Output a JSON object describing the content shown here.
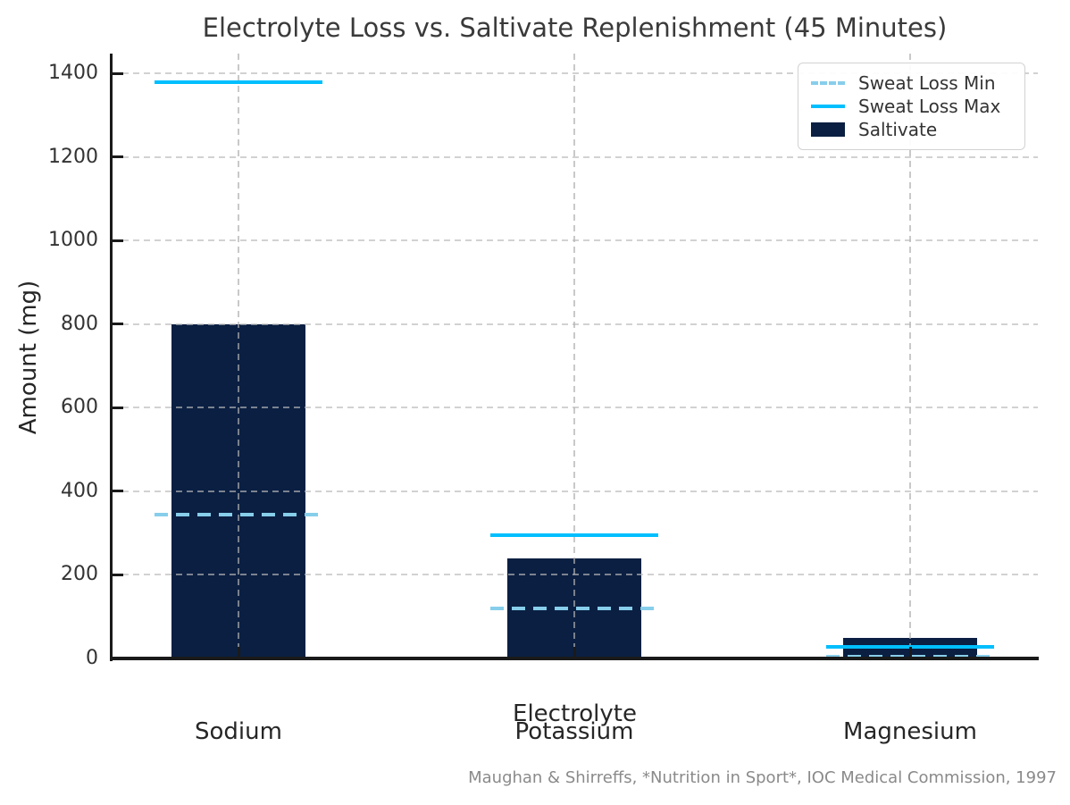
{
  "chart_data": {
    "type": "bar",
    "title": "Electrolyte Loss vs. Saltivate Replenishment (45 Minutes)",
    "xlabel": "Electrolyte",
    "ylabel": "Amount (mg)",
    "categories": [
      "Sodium",
      "Potassium",
      "Magnesium"
    ],
    "series": [
      {
        "name": "Sweat Loss Min",
        "style": "dashed-line",
        "color": "#87CEEB",
        "values": [
          345,
          120,
          5
        ]
      },
      {
        "name": "Sweat Loss Max",
        "style": "solid-line",
        "color": "#00BFFF",
        "values": [
          1380,
          295,
          27
        ]
      },
      {
        "name": "Saltivate",
        "style": "bar",
        "color": "#0a1f42",
        "values": [
          800,
          240,
          50
        ]
      }
    ],
    "ylim": [
      0,
      1448
    ],
    "yticks": [
      0,
      200,
      400,
      600,
      800,
      1000,
      1200,
      1400
    ],
    "grid": "dashed horizontal and vertical gridlines",
    "legend_position": "upper right",
    "source_note": "Maughan & Shirreffs, *Nutrition in Sport*, IOC Medical Commission, 1997",
    "colors": {
      "axis": "#1a1a1a",
      "grid": "#b9b9b9",
      "title_text": "#3a3a3a",
      "tick_text": "#333333",
      "footer_text": "#8a8a8a"
    }
  }
}
